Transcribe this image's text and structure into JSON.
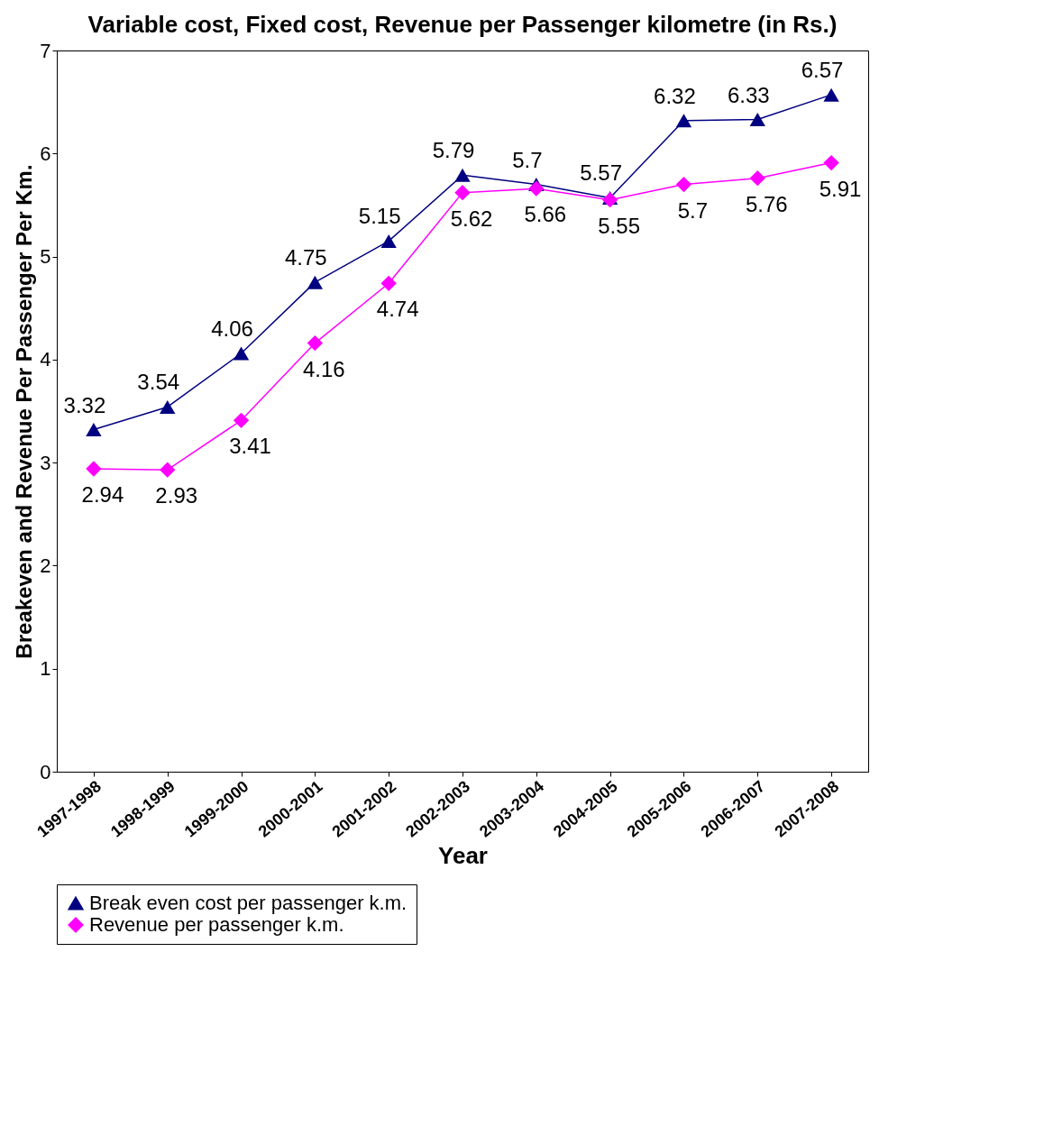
{
  "chart_data": {
    "type": "line",
    "title": "Variable cost, Fixed cost, Revenue per Passenger kilometre (in Rs.)",
    "xlabel": "Year",
    "ylabel": "Breakeven and Revenue Per Passenger Per Km.",
    "categories": [
      "1997-1998",
      "1998-1999",
      "1999-2000",
      "2000-2001",
      "2001-2002",
      "2002-2003",
      "2003-2004",
      "2004-2005",
      "2005-2006",
      "2006-2007",
      "2007-2008"
    ],
    "series": [
      {
        "name": "Break even cost per passenger k.m.",
        "color": "#000080",
        "marker": "triangle",
        "values": [
          3.32,
          3.54,
          4.06,
          4.75,
          5.15,
          5.79,
          5.7,
          5.57,
          6.32,
          6.33,
          6.57
        ]
      },
      {
        "name": "Revenue per passenger k.m.",
        "color": "#ff00ff",
        "marker": "diamond",
        "values": [
          2.94,
          2.93,
          3.41,
          4.16,
          4.74,
          5.62,
          5.66,
          5.55,
          5.7,
          5.76,
          5.91
        ]
      }
    ],
    "ylim": [
      0,
      7
    ],
    "yticks": [
      0,
      1,
      2,
      3,
      4,
      5,
      6,
      7
    ],
    "grid": false,
    "legend": "bottom",
    "data_labels": true
  }
}
